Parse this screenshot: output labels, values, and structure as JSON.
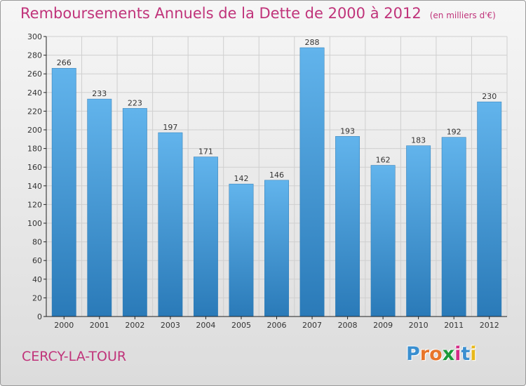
{
  "header": {
    "title": "Remboursements Annuels de la Dette de 2000 à 2012",
    "subtitle": "(en milliers d'€)"
  },
  "footer": {
    "city": "CERCY-LA-TOUR",
    "logo_letters": [
      "P",
      "r",
      "o",
      "x",
      "i",
      "t",
      "i"
    ],
    "logo_colors": [
      "#3a8fd0",
      "#e8752a",
      "#e8752a",
      "#1a9a3a",
      "#d42a86",
      "#3a8fd0",
      "#e8b81a"
    ]
  },
  "colors": {
    "bar_top": "#62b4ec",
    "bar_bottom": "#2a7ab8",
    "grid": "#cfcfcf",
    "axis": "#222222",
    "text": "#333333"
  },
  "chart_data": {
    "type": "bar",
    "categories": [
      "2000",
      "2001",
      "2002",
      "2003",
      "2004",
      "2005",
      "2006",
      "2007",
      "2008",
      "2009",
      "2010",
      "2011",
      "2012"
    ],
    "values": [
      266,
      233,
      223,
      197,
      171,
      142,
      146,
      288,
      193,
      162,
      183,
      192,
      230
    ],
    "title": "Remboursements Annuels de la Dette de 2000 à 2012",
    "xlabel": "",
    "ylabel": "",
    "ylim": [
      0,
      300
    ],
    "yticks": [
      0,
      20,
      40,
      60,
      80,
      100,
      120,
      140,
      160,
      180,
      200,
      220,
      240,
      260,
      280,
      300
    ],
    "grid": true,
    "data_labels": true
  }
}
